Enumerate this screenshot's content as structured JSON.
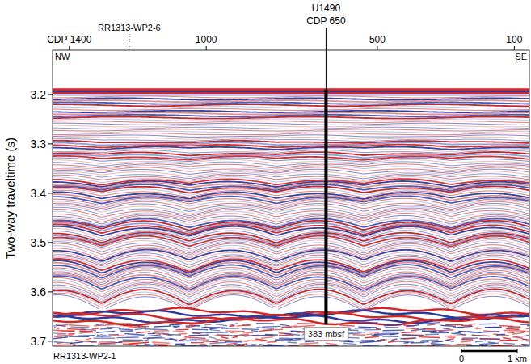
{
  "chart_data": {
    "type": "seismic",
    "ylabel": "Two-way traveltime (s)",
    "xlim": [
      1449,
      56
    ],
    "xticks": [
      {
        "value": 1400,
        "label": "CDP 1400"
      },
      1000,
      500,
      100
    ],
    "ylim": [
      3.11,
      3.71
    ],
    "yticks": [
      3.2,
      3.3,
      3.4,
      3.5,
      3.6,
      3.7
    ],
    "seafloor_twt": 3.19,
    "basement_twt": 3.64,
    "well": {
      "name": "U1490",
      "cdp": 650,
      "cdp_label": "CDP 650",
      "bottom_twt": 3.665,
      "bottom_label": "383 mbsf"
    },
    "line_marker": {
      "text": "RR1313-WP2-6",
      "cdp": 1225
    },
    "line_name": "RR1313-WP2-1",
    "direction_labels": [
      "NW",
      "SE"
    ],
    "scale_bar": {
      "start_label": "0",
      "end_label": "1 km",
      "length_cdp": 163
    }
  }
}
